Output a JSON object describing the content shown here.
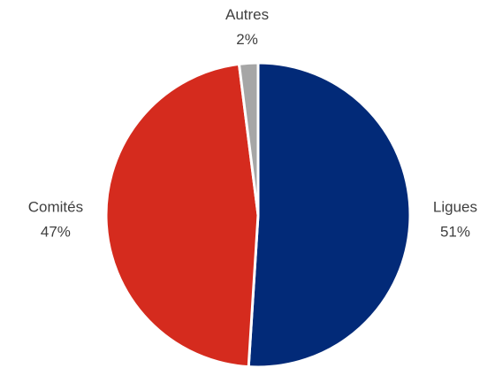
{
  "chart_data": {
    "type": "pie",
    "categories": [
      "Ligues",
      "Comités",
      "Autres"
    ],
    "values": [
      51,
      47,
      2
    ],
    "value_labels": [
      "51%",
      "47%",
      "2%"
    ],
    "colors": [
      "#022a78",
      "#d52b1e",
      "#a6a6a6"
    ]
  }
}
